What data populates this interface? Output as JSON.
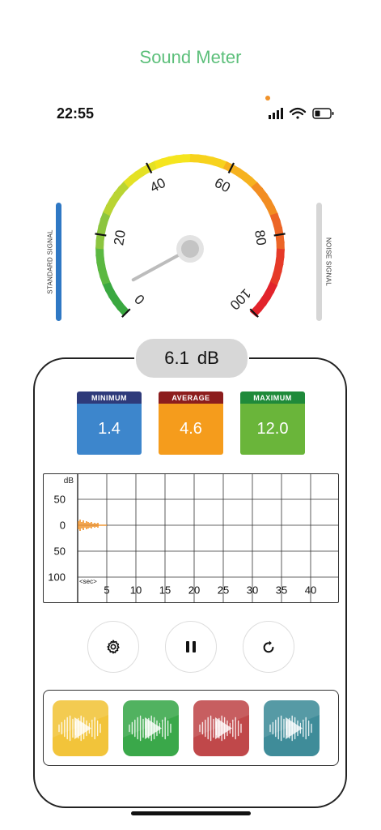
{
  "app": {
    "title": "Sound Meter"
  },
  "status_bar": {
    "time": "22:55",
    "icons": [
      "signal-icon",
      "wifi-icon",
      "battery-icon"
    ]
  },
  "side_labels": {
    "left": "STANDARD SIGNAL",
    "right": "NOISE SIGNAL"
  },
  "gauge": {
    "ticks": [
      "0",
      "20",
      "40",
      "60",
      "80",
      "100"
    ],
    "needle_value": 6.1,
    "min": 0,
    "max": 100
  },
  "reading": {
    "value": "6.1",
    "unit": "dB"
  },
  "stats": {
    "minimum": {
      "label": "MINIMUM",
      "value": "1.4",
      "header_color": "#2e3a7a",
      "color": "#3d86cc"
    },
    "average": {
      "label": "AVERAGE",
      "value": "4.6",
      "header_color": "#8c1d1d",
      "color": "#f59c1c"
    },
    "maximum": {
      "label": "MAXIMUM",
      "value": "12.0",
      "header_color": "#1f8a3a",
      "color": "#6ab53a"
    }
  },
  "graph": {
    "y_unit": "dB",
    "y_labels": [
      "50",
      "0",
      "50",
      "100"
    ],
    "x_unit": "<sec>",
    "x_labels": [
      "5",
      "10",
      "15",
      "20",
      "25",
      "30",
      "35",
      "40"
    ],
    "trace_color": "#f0922a"
  },
  "controls": [
    "gear-icon",
    "pause-icon",
    "reset-icon"
  ],
  "sound_tiles": [
    {
      "name": "yellow",
      "color": "#f2c43a"
    },
    {
      "name": "green",
      "color": "#3aa84a"
    },
    {
      "name": "red",
      "color": "#c0484a"
    },
    {
      "name": "teal",
      "color": "#3f8c99"
    }
  ]
}
